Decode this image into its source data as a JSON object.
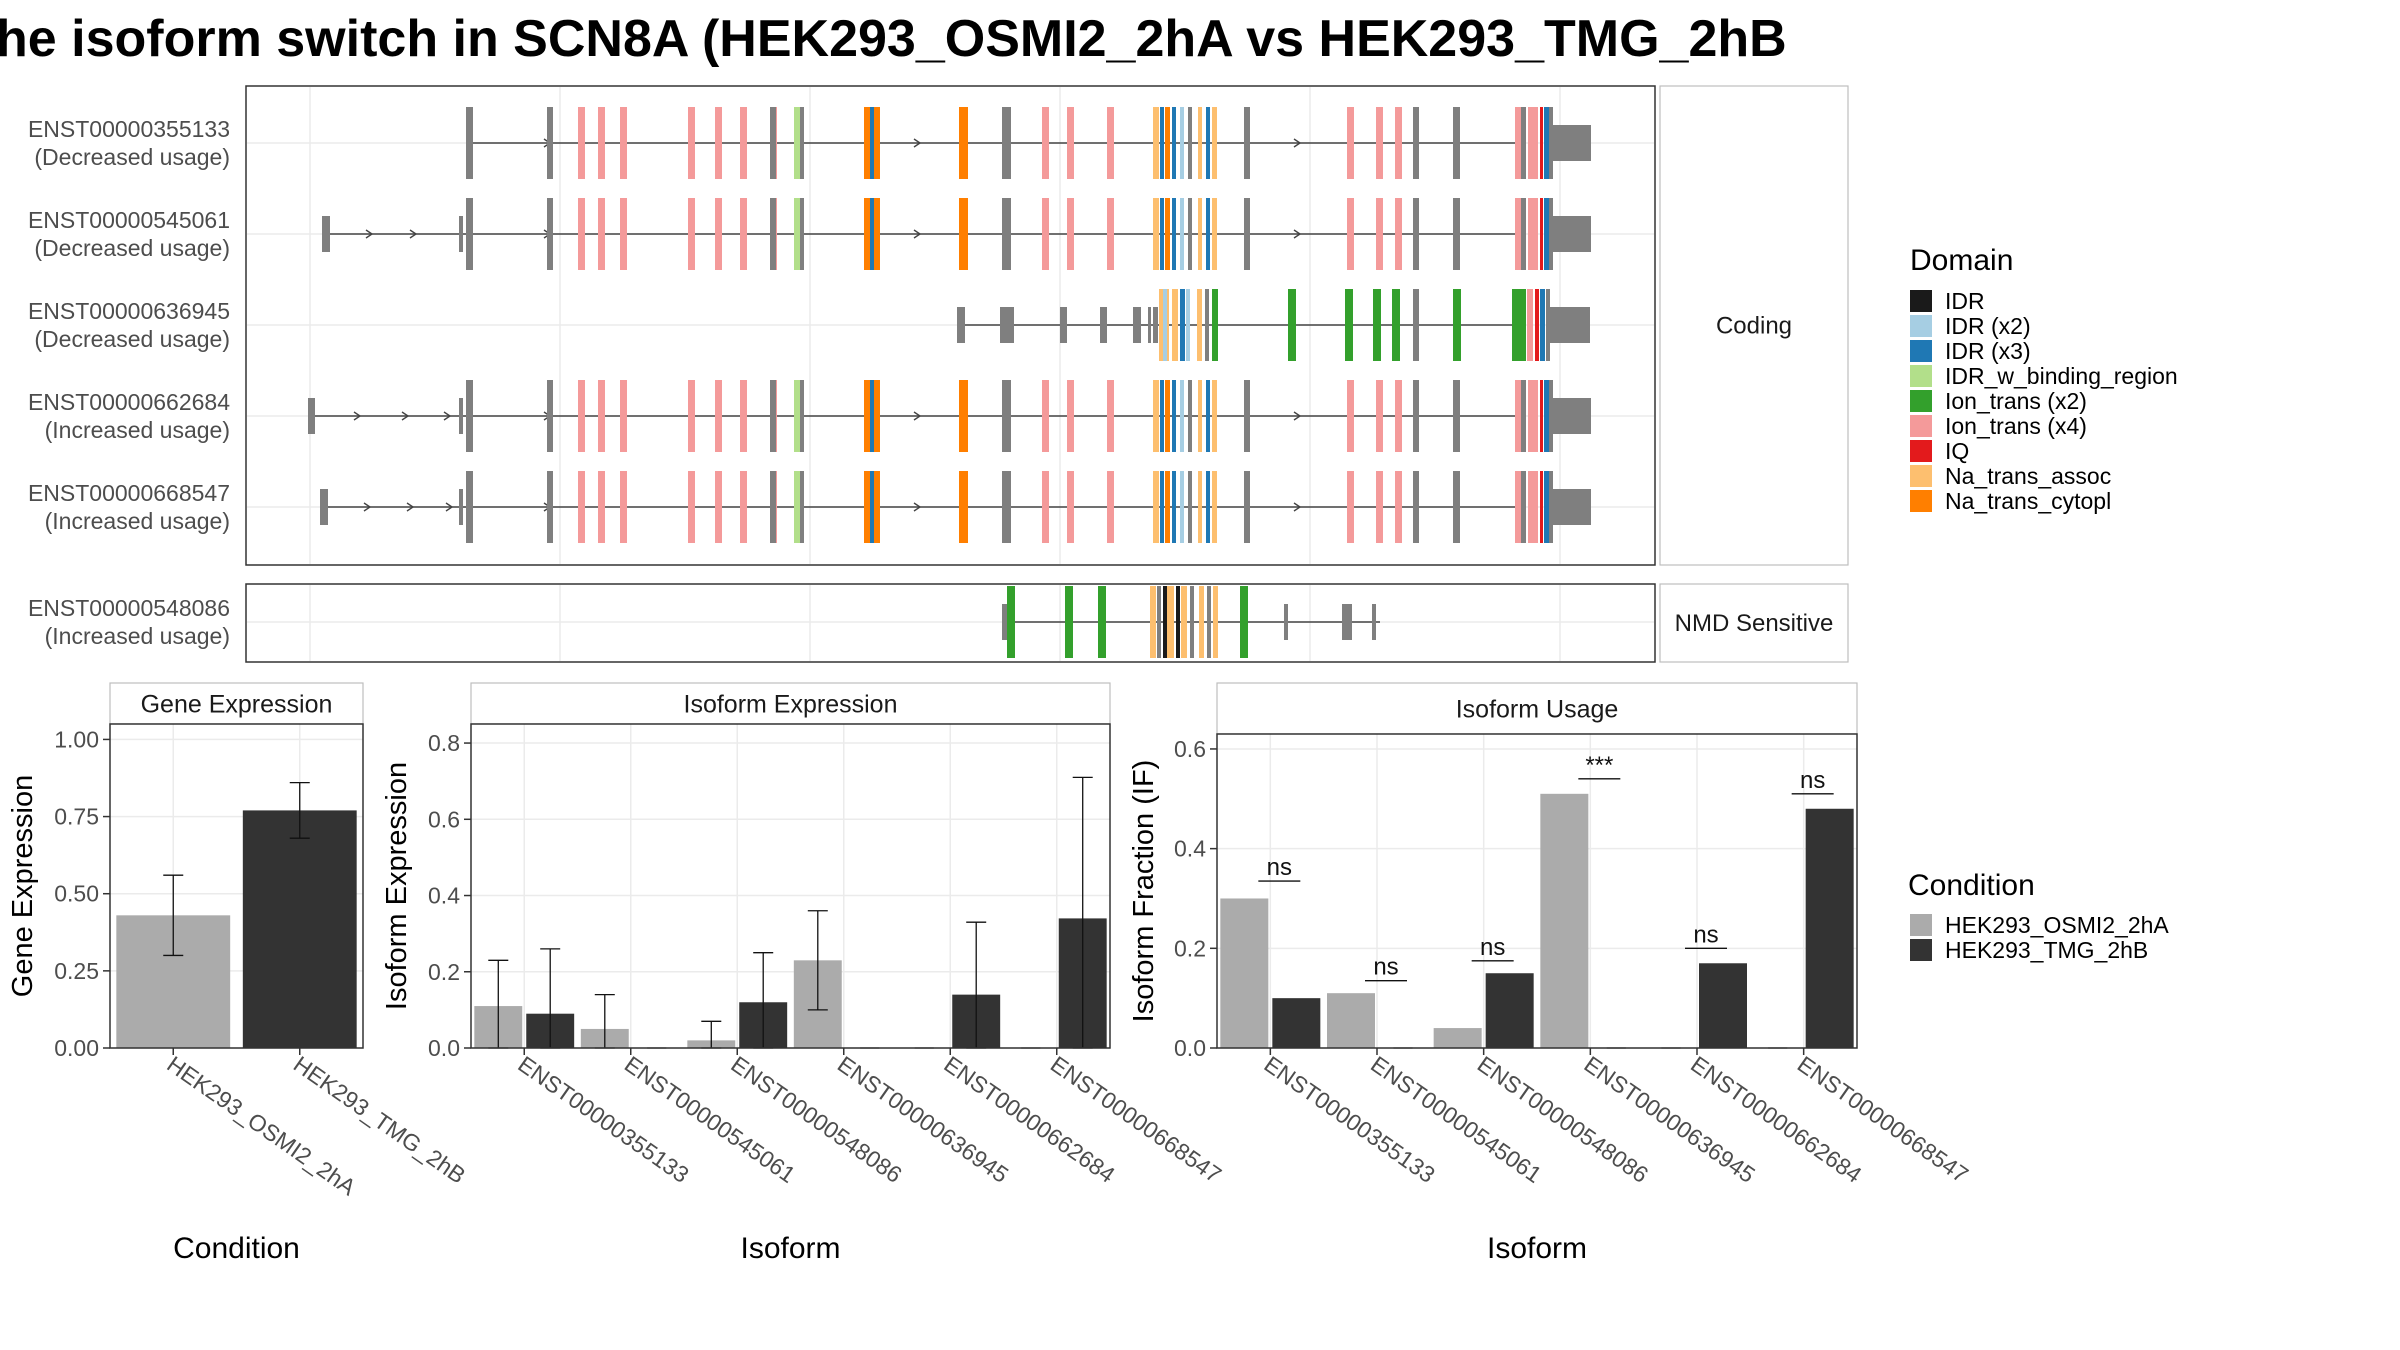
{
  "title": "he isoform switch in SCN8A (HEK293_OSMI2_2hA vs HEK293_TMG_2hB",
  "colors": {
    "cond1": "#ABABAB",
    "cond2": "#333333",
    "exon": "#7F7F7F",
    "IDR": "#1A1A1A",
    "IDR (x2)": "#A6CEE3",
    "IDR (x3)": "#1F78B4",
    "IDR_w_binding_region": "#B2DF8A",
    "Ion_trans (x2)": "#33A02C",
    "Ion_trans (x4)": "#F49A9A",
    "IQ": "#E31A1C",
    "Na_trans_assoc": "#FDBF6F",
    "Na_trans_cytopl": "#FF7F00"
  },
  "structure": {
    "facets": [
      "Coding",
      "NMD Sensitive"
    ],
    "transcripts": [
      {
        "id": "ENST00000355133",
        "usage": "(Decreased usage)",
        "facet": "Coding"
      },
      {
        "id": "ENST00000545061",
        "usage": "(Decreased usage)",
        "facet": "Coding"
      },
      {
        "id": "ENST00000636945",
        "usage": "(Decreased usage)",
        "facet": "Coding"
      },
      {
        "id": "ENST00000662684",
        "usage": "(Increased usage)",
        "facet": "Coding"
      },
      {
        "id": "ENST00000668547",
        "usage": "(Increased usage)",
        "facet": "Coding"
      },
      {
        "id": "ENST00000548086",
        "usage": "(Increased usage)",
        "facet": "NMD Sensitive"
      }
    ]
  },
  "legends": {
    "domain": {
      "title": "Domain",
      "entries": [
        "IDR",
        "IDR (x2)",
        "IDR (x3)",
        "IDR_w_binding_region",
        "Ion_trans (x2)",
        "Ion_trans (x4)",
        "IQ",
        "Na_trans_assoc",
        "Na_trans_cytopl"
      ]
    },
    "condition": {
      "title": "Condition",
      "entries": [
        "HEK293_OSMI2_2hA",
        "HEK293_TMG_2hB"
      ]
    }
  },
  "chart_data": [
    {
      "type": "bar",
      "title": "Gene Expression",
      "xlabel": "Condition",
      "ylabel": "Gene Expression",
      "ylim": [
        0,
        1.05
      ],
      "yticks": [
        "0.00",
        "0.25",
        "0.50",
        "0.75",
        "1.00"
      ],
      "categories": [
        "HEK293_OSMI2_2hA",
        "HEK293_TMG_2hB"
      ],
      "values": [
        0.43,
        0.77
      ],
      "error_low": [
        0.3,
        0.68
      ],
      "error_high": [
        0.56,
        0.86
      ]
    },
    {
      "type": "bar",
      "title": "Isoform Expression",
      "xlabel": "Isoform",
      "ylabel": "Isoform Expression",
      "ylim": [
        0,
        0.85
      ],
      "yticks": [
        "0.0",
        "0.2",
        "0.4",
        "0.6",
        "0.8"
      ],
      "categories": [
        "ENST00000355133",
        "ENST00000545061",
        "ENST00000548086",
        "ENST00000636945",
        "ENST00000662684",
        "ENST00000668547"
      ],
      "series": [
        {
          "name": "HEK293_OSMI2_2hA",
          "values": [
            0.11,
            0.05,
            0.02,
            0.23,
            0.0,
            0.0
          ],
          "error_low": [
            0.0,
            0.0,
            0.0,
            0.1,
            0.0,
            0.0
          ],
          "error_high": [
            0.23,
            0.14,
            0.07,
            0.36,
            0.0,
            0.0
          ]
        },
        {
          "name": "HEK293_TMG_2hB",
          "values": [
            0.09,
            0.0,
            0.12,
            0.0,
            0.14,
            0.34
          ],
          "error_low": [
            0.0,
            0.0,
            0.0,
            0.0,
            0.0,
            0.0
          ],
          "error_high": [
            0.26,
            0.0,
            0.25,
            0.0,
            0.33,
            0.71
          ]
        }
      ]
    },
    {
      "type": "bar",
      "title": "Isoform Usage",
      "xlabel": "Isoform",
      "ylabel": "Isoform Fraction (IF)",
      "ylim": [
        0,
        0.63
      ],
      "yticks": [
        "0.0",
        "0.2",
        "0.4",
        "0.6"
      ],
      "categories": [
        "ENST00000355133",
        "ENST00000545061",
        "ENST00000548086",
        "ENST00000636945",
        "ENST00000662684",
        "ENST00000668547"
      ],
      "series": [
        {
          "name": "HEK293_OSMI2_2hA",
          "values": [
            0.3,
            0.11,
            0.04,
            0.51,
            0.0,
            0.0
          ]
        },
        {
          "name": "HEK293_TMG_2hB",
          "values": [
            0.1,
            0.0,
            0.15,
            0.0,
            0.17,
            0.48
          ]
        }
      ],
      "annotations": [
        "ns",
        "ns",
        "ns",
        "***",
        "ns",
        "ns"
      ],
      "annotation_y": [
        0.335,
        0.135,
        0.175,
        0.54,
        0.2,
        0.51
      ]
    }
  ]
}
